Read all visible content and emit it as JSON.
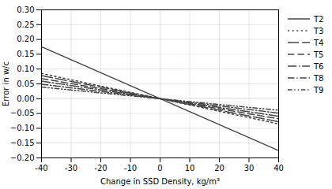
{
  "chart_data": {
    "type": "line",
    "xlabel": "Change in SSD Density, kg/m³",
    "ylabel": "Error in w/c",
    "x": [
      -40,
      40
    ],
    "series": [
      {
        "name": "T2",
        "color": "#444444",
        "line_style": "solid",
        "values": [
          0.1752,
          -0.1752
        ]
      },
      {
        "name": "T3",
        "color": "#444444",
        "line_style": "dotted",
        "values": [
          0.0852,
          -0.0852
        ]
      },
      {
        "name": "T4",
        "color": "#444444",
        "line_style": "longdash",
        "values": [
          0.078,
          -0.078
        ]
      },
      {
        "name": "T5",
        "color": "#444444",
        "line_style": "dashed",
        "values": [
          0.068,
          -0.068
        ]
      },
      {
        "name": "T6",
        "color": "#444444",
        "line_style": "longdashdot",
        "values": [
          0.0592,
          -0.0592
        ]
      },
      {
        "name": "T8",
        "color": "#444444",
        "line_style": "dashdot",
        "values": [
          0.0488,
          -0.0488
        ]
      },
      {
        "name": "T9",
        "color": "#444444",
        "line_style": "dashdotdot",
        "values": [
          0.0392,
          -0.0392
        ]
      }
    ],
    "xlim": [
      -40,
      40
    ],
    "xticks": [
      -40,
      -30,
      -20,
      -10,
      0,
      10,
      20,
      30,
      40
    ],
    "ylim": [
      -0.2,
      0.3
    ],
    "yticks": [
      {
        "value": -0.2,
        "label": "−0.20"
      },
      {
        "value": -0.15,
        "label": "−0.15"
      },
      {
        "value": -0.1,
        "label": "−0.10"
      },
      {
        "value": -0.05,
        "label": "−0.05"
      },
      {
        "value": 0,
        "label": "0.00"
      },
      {
        "value": 0.05,
        "label": "0.05"
      },
      {
        "value": 0.1,
        "label": "0.10"
      },
      {
        "value": 0.15,
        "label": "0.15"
      },
      {
        "value": 0.2,
        "label": "0.20"
      },
      {
        "value": 0.25,
        "label": "0.25"
      },
      {
        "value": 0.3,
        "label": "0.30"
      }
    ],
    "grid": true,
    "legend": "right"
  }
}
